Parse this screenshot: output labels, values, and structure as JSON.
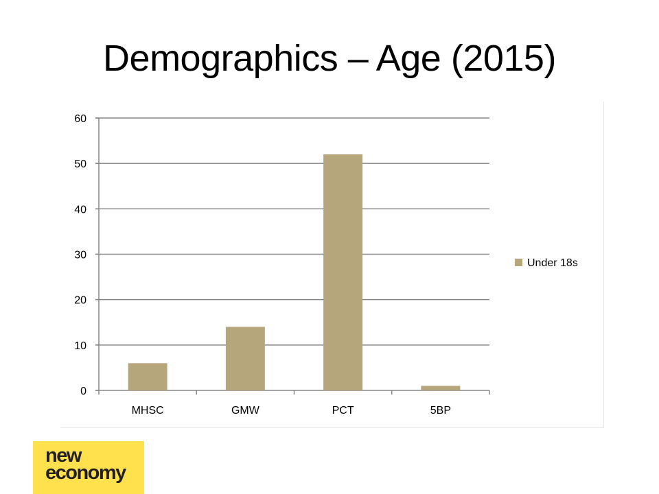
{
  "slide": {
    "title": "Demographics – Age (2015)"
  },
  "logo": {
    "line1": "new",
    "line2": "economy"
  },
  "colors": {
    "bar": "#b5a67c",
    "grid": "#868686",
    "axis": "#868686"
  },
  "chart_data": {
    "type": "bar",
    "categories": [
      "MHSC",
      "GMW",
      "PCT",
      "5BP"
    ],
    "series": [
      {
        "name": "Under 18s",
        "values": [
          6,
          14,
          52,
          1
        ]
      }
    ],
    "ylim": [
      0,
      60
    ],
    "yticks": [
      0,
      10,
      20,
      30,
      40,
      50,
      60
    ],
    "grid": true,
    "legend": "right"
  }
}
